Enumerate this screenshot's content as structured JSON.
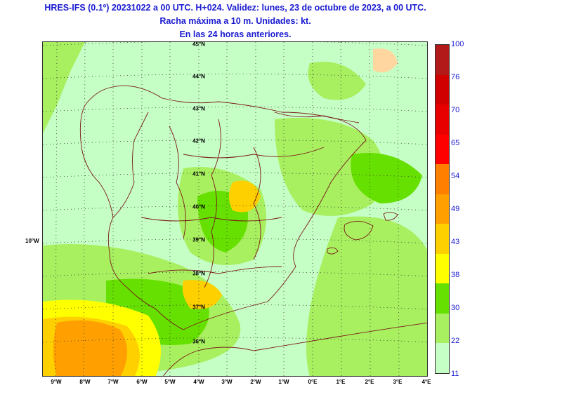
{
  "title": {
    "line1": "HRES-IFS (0.1º) 20231022 a 00 UTC. H+024. Validez: lunes, 23 de octubre de 2023, a 00 UTC.",
    "line2": "Racha máxima a 10 m. Unidades: kt.",
    "line3": "En las 24 horas anteriores."
  },
  "map": {
    "lon_labels": [
      "9°W",
      "8°W",
      "7°W",
      "6°W",
      "5°W",
      "4°W",
      "3°W",
      "2°W",
      "1°W",
      "0°E",
      "1°E",
      "2°E",
      "3°E",
      "4°E"
    ],
    "lat_labels": [
      "45°N",
      "44°N",
      "43°N",
      "42°N",
      "41°N",
      "40°N",
      "39°N",
      "38°N",
      "37°N",
      "36°N"
    ],
    "side_lon_label": "10°W",
    "land_border_color": "#7a1a1a",
    "sea_color": "#c6ffc6"
  },
  "colorbar": {
    "labels": [
      "100",
      "76",
      "70",
      "65",
      "54",
      "49",
      "43",
      "38",
      "30",
      "22",
      "11"
    ],
    "colors": [
      "#b21a1a",
      "#d00000",
      "#e80000",
      "#ff0000",
      "#ff8000",
      "#ff9f00",
      "#ffd000",
      "#ffff00",
      "#66e000",
      "#a8f060",
      "#c6ffc6"
    ]
  }
}
